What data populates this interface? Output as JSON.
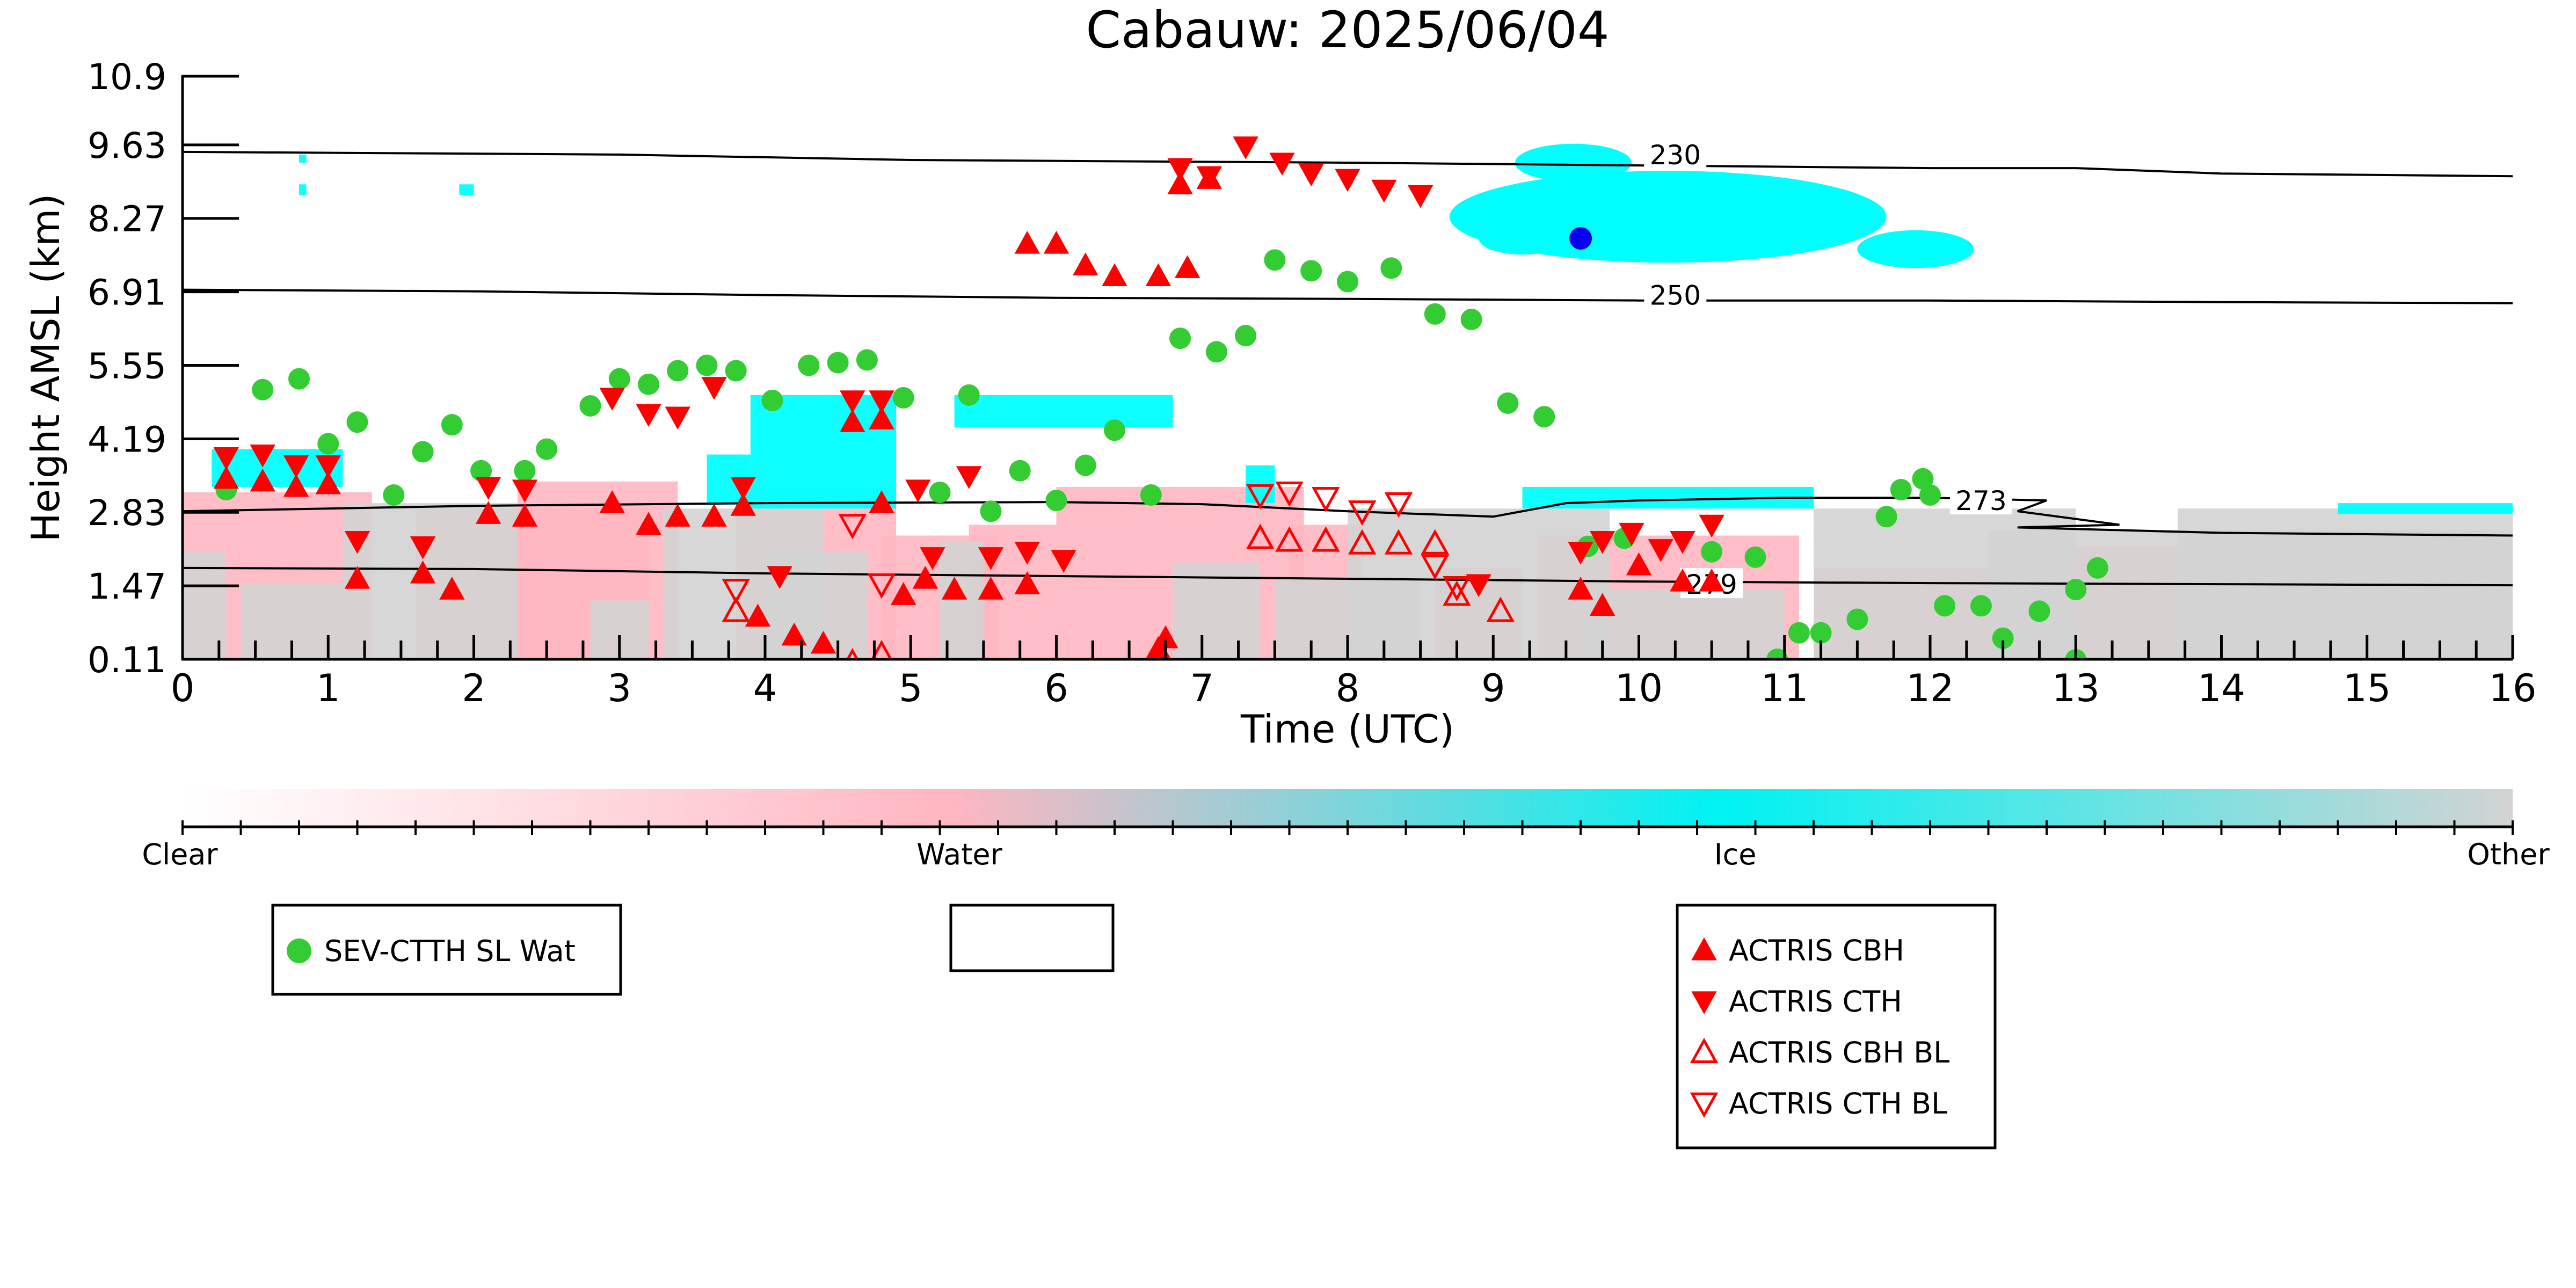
{
  "chart_data": {
    "type": "scatter",
    "title": "Cabauw: 2025/06/04",
    "xlabel": "Time (UTC)",
    "ylabel": "Height AMSL (km)",
    "xlim": [
      0,
      16
    ],
    "ylim": [
      0.11,
      10.9
    ],
    "x_ticks": [
      "0",
      "1",
      "2",
      "3",
      "4",
      "5",
      "6",
      "7",
      "8",
      "9",
      "10",
      "11",
      "12",
      "13",
      "14",
      "15",
      "16"
    ],
    "y_ticks": [
      "0.11",
      "1.47",
      "2.83",
      "4.19",
      "5.55",
      "6.91",
      "8.27",
      "9.63",
      "10.9"
    ],
    "y_tick_values": [
      0.11,
      1.47,
      2.83,
      4.19,
      5.55,
      6.91,
      8.27,
      9.63,
      10.9
    ],
    "colorbar": {
      "labels": [
        "Clear",
        "Water",
        "Ice",
        "Other"
      ],
      "colors": [
        "#ffffff",
        "#ffb6c1",
        "#00ffff",
        "#d3d3d3"
      ]
    },
    "colors": {
      "water": "#ffb6c1",
      "ice": "#00ffff",
      "other": "#d3d3d3",
      "sev": "#33cc33",
      "actris": "#ff0000",
      "highlight": "#0000ee"
    },
    "isotherms": [
      {
        "label": "230",
        "label_at": [
          10.25,
          9.45
        ],
        "points": [
          [
            0,
            9.5
          ],
          [
            3,
            9.45
          ],
          [
            5,
            9.35
          ],
          [
            8,
            9.3
          ],
          [
            10,
            9.25
          ],
          [
            12,
            9.2
          ],
          [
            13,
            9.2
          ],
          [
            14,
            9.1
          ],
          [
            16,
            9.05
          ]
        ]
      },
      {
        "label": "250",
        "label_at": [
          10.25,
          6.85
        ],
        "points": [
          [
            0,
            6.95
          ],
          [
            2,
            6.92
          ],
          [
            4,
            6.85
          ],
          [
            6,
            6.8
          ],
          [
            8,
            6.78
          ],
          [
            10,
            6.75
          ],
          [
            12,
            6.75
          ],
          [
            14,
            6.72
          ],
          [
            16,
            6.7
          ]
        ]
      },
      {
        "label": "273",
        "label_at": [
          12.35,
          3.05
        ],
        "points": [
          [
            0,
            2.85
          ],
          [
            2,
            2.95
          ],
          [
            4,
            3.0
          ],
          [
            6,
            3.02
          ],
          [
            7,
            2.98
          ],
          [
            8,
            2.85
          ],
          [
            9,
            2.75
          ],
          [
            9.5,
            3.0
          ],
          [
            10,
            3.05
          ],
          [
            11,
            3.1
          ],
          [
            12,
            3.1
          ],
          [
            12.8,
            3.05
          ],
          [
            12.6,
            2.85
          ],
          [
            13.3,
            2.6
          ],
          [
            12.6,
            2.55
          ],
          [
            14,
            2.45
          ],
          [
            16,
            2.4
          ]
        ]
      },
      {
        "label": "279",
        "label_at": [
          10.5,
          1.5
        ],
        "points": [
          [
            0,
            1.8
          ],
          [
            2,
            1.78
          ],
          [
            4,
            1.7
          ],
          [
            6,
            1.65
          ],
          [
            8,
            1.6
          ],
          [
            10,
            1.55
          ],
          [
            12,
            1.52
          ],
          [
            14,
            1.5
          ],
          [
            16,
            1.48
          ]
        ]
      }
    ],
    "cloud_regions": [
      {
        "type": "water",
        "rects": [
          [
            0,
            0.11,
            1.3,
            3.2
          ],
          [
            1.6,
            0.11,
            3.2,
            2.9
          ],
          [
            2.3,
            0.11,
            3.4,
            3.4
          ],
          [
            3.8,
            0.11,
            4.9,
            3.3
          ],
          [
            4.8,
            0.11,
            5.6,
            2.4
          ],
          [
            5.4,
            0.11,
            6.0,
            2.6
          ],
          [
            6.0,
            0.11,
            7.7,
            3.3
          ],
          [
            7.6,
            0.11,
            8.1,
            2.6
          ],
          [
            8.6,
            0.11,
            9.2,
            1.8
          ],
          [
            9.3,
            0.11,
            11.1,
            2.4
          ],
          [
            11.2,
            0.11,
            12.4,
            1.8
          ],
          [
            12.4,
            0.11,
            14.2,
            2.2
          ]
        ]
      },
      {
        "type": "other",
        "rects": [
          [
            0,
            0.11,
            0.3,
            2.1
          ],
          [
            0.4,
            0.11,
            1.1,
            1.5
          ],
          [
            1.1,
            0.11,
            2.3,
            3.0
          ],
          [
            2.8,
            0.11,
            3.2,
            1.2
          ],
          [
            3.3,
            0.11,
            4.4,
            2.9
          ],
          [
            4.0,
            0.11,
            4.7,
            2.1
          ],
          [
            5.2,
            0.11,
            5.5,
            2.3
          ],
          [
            6.8,
            0.11,
            7.4,
            1.9
          ],
          [
            7.5,
            0.11,
            8.5,
            1.6
          ],
          [
            8.0,
            0.11,
            9.8,
            2.9
          ],
          [
            9.6,
            0.11,
            11.0,
            1.4
          ],
          [
            11.2,
            0.11,
            13.0,
            2.9
          ],
          [
            12.4,
            0.11,
            16.0,
            2.5
          ],
          [
            13.7,
            0.11,
            16.0,
            2.9
          ]
        ]
      },
      {
        "type": "ice",
        "rects": [
          [
            0.2,
            3.3,
            1.1,
            4.0
          ],
          [
            3.6,
            3.0,
            3.9,
            3.9
          ],
          [
            3.9,
            2.9,
            4.9,
            5.0
          ],
          [
            5.3,
            4.4,
            6.8,
            5.0
          ],
          [
            7.3,
            3.0,
            7.5,
            3.7
          ],
          [
            9.2,
            2.9,
            11.2,
            3.3
          ],
          [
            14.8,
            2.8,
            16.0,
            3.0
          ],
          [
            0.8,
            8.7,
            0.85,
            8.9
          ],
          [
            1.9,
            8.7,
            2.0,
            8.9
          ],
          [
            0.8,
            9.3,
            0.85,
            9.45
          ]
        ]
      },
      {
        "type": "ice",
        "ellipses": [
          [
            10.2,
            8.3,
            1.5,
            0.85
          ],
          [
            9.55,
            9.3,
            0.4,
            0.35
          ],
          [
            11.9,
            7.7,
            0.4,
            0.35
          ],
          [
            9.2,
            7.9,
            0.3,
            0.3
          ]
        ]
      }
    ],
    "series": [
      {
        "name": "SEV-CTTH SL Wat",
        "marker": "circle",
        "points": [
          [
            0.3,
            3.25
          ],
          [
            0.55,
            5.1
          ],
          [
            0.8,
            5.3
          ],
          [
            1.0,
            4.1
          ],
          [
            1.2,
            4.5
          ],
          [
            1.45,
            3.15
          ],
          [
            1.65,
            3.95
          ],
          [
            1.85,
            4.45
          ],
          [
            2.05,
            3.6
          ],
          [
            2.35,
            3.6
          ],
          [
            2.5,
            4.0
          ],
          [
            2.8,
            4.8
          ],
          [
            3.0,
            5.3
          ],
          [
            3.2,
            5.2
          ],
          [
            3.4,
            5.45
          ],
          [
            3.6,
            5.55
          ],
          [
            3.8,
            5.45
          ],
          [
            4.05,
            4.9
          ],
          [
            4.3,
            5.55
          ],
          [
            4.5,
            5.6
          ],
          [
            4.7,
            5.65
          ],
          [
            4.95,
            4.95
          ],
          [
            5.2,
            3.2
          ],
          [
            5.4,
            5.0
          ],
          [
            5.55,
            2.85
          ],
          [
            5.75,
            3.6
          ],
          [
            6.0,
            3.05
          ],
          [
            6.2,
            3.7
          ],
          [
            6.4,
            4.35
          ],
          [
            6.65,
            3.15
          ],
          [
            6.85,
            6.05
          ],
          [
            7.1,
            5.8
          ],
          [
            7.3,
            6.1
          ],
          [
            7.5,
            7.5
          ],
          [
            7.75,
            7.3
          ],
          [
            8.0,
            7.1
          ],
          [
            8.3,
            7.35
          ],
          [
            8.6,
            6.5
          ],
          [
            8.85,
            6.4
          ],
          [
            9.1,
            4.85
          ],
          [
            9.35,
            4.6
          ],
          [
            9.65,
            2.2
          ],
          [
            9.9,
            2.35
          ],
          [
            10.5,
            2.1
          ],
          [
            10.8,
            2.0
          ],
          [
            10.95,
            0.11
          ],
          [
            11.1,
            0.6
          ],
          [
            11.25,
            0.6
          ],
          [
            11.5,
            0.85
          ],
          [
            11.7,
            2.75
          ],
          [
            11.8,
            3.25
          ],
          [
            11.95,
            3.45
          ],
          [
            12.0,
            3.15
          ],
          [
            12.1,
            1.1
          ],
          [
            12.35,
            1.1
          ],
          [
            12.5,
            0.5
          ],
          [
            12.75,
            1.0
          ],
          [
            13.0,
            1.4
          ],
          [
            13.15,
            1.8
          ],
          [
            13.0,
            0.1
          ]
        ]
      },
      {
        "name": "ACTRIS CBH",
        "marker": "triangle-up",
        "points": [
          [
            0.3,
            3.45
          ],
          [
            0.55,
            3.4
          ],
          [
            0.78,
            3.3
          ],
          [
            1.0,
            3.35
          ],
          [
            1.2,
            1.6
          ],
          [
            1.65,
            1.7
          ],
          [
            1.85,
            1.4
          ],
          [
            2.1,
            2.8
          ],
          [
            2.35,
            2.75
          ],
          [
            2.95,
            3.0
          ],
          [
            3.2,
            2.6
          ],
          [
            3.4,
            2.75
          ],
          [
            3.65,
            2.75
          ],
          [
            3.85,
            2.95
          ],
          [
            3.95,
            0.9
          ],
          [
            4.2,
            0.55
          ],
          [
            4.4,
            0.4
          ],
          [
            4.6,
            4.5
          ],
          [
            4.8,
            4.55
          ],
          [
            4.8,
            3.0
          ],
          [
            4.95,
            1.3
          ],
          [
            5.1,
            1.6
          ],
          [
            5.3,
            1.4
          ],
          [
            5.55,
            1.4
          ],
          [
            5.8,
            1.5
          ],
          [
            5.8,
            7.8
          ],
          [
            6.0,
            7.8
          ],
          [
            6.2,
            7.4
          ],
          [
            6.4,
            7.2
          ],
          [
            6.7,
            7.2
          ],
          [
            6.9,
            7.35
          ],
          [
            6.85,
            8.9
          ],
          [
            7.05,
            9.0
          ],
          [
            6.75,
            0.5
          ],
          [
            6.7,
            0.3
          ],
          [
            9.6,
            1.4
          ],
          [
            9.75,
            1.1
          ],
          [
            10.0,
            1.85
          ],
          [
            10.3,
            1.55
          ],
          [
            10.5,
            1.55
          ]
        ]
      },
      {
        "name": "ACTRIS CTH",
        "marker": "triangle-down",
        "points": [
          [
            0.3,
            3.85
          ],
          [
            0.55,
            3.9
          ],
          [
            0.78,
            3.7
          ],
          [
            1.0,
            3.7
          ],
          [
            1.2,
            2.3
          ],
          [
            1.65,
            2.2
          ],
          [
            2.1,
            3.3
          ],
          [
            2.35,
            3.25
          ],
          [
            2.95,
            4.95
          ],
          [
            3.2,
            4.65
          ],
          [
            3.4,
            4.6
          ],
          [
            3.65,
            5.15
          ],
          [
            3.85,
            3.3
          ],
          [
            4.1,
            1.65
          ],
          [
            4.6,
            4.9
          ],
          [
            4.8,
            4.9
          ],
          [
            5.05,
            3.25
          ],
          [
            5.15,
            2.0
          ],
          [
            5.4,
            3.5
          ],
          [
            5.55,
            2.0
          ],
          [
            5.8,
            2.1
          ],
          [
            6.05,
            1.95
          ],
          [
            6.85,
            9.2
          ],
          [
            7.05,
            9.05
          ],
          [
            7.3,
            9.6
          ],
          [
            7.55,
            9.3
          ],
          [
            7.75,
            9.1
          ],
          [
            8.0,
            9.0
          ],
          [
            8.25,
            8.8
          ],
          [
            8.5,
            8.7
          ],
          [
            8.9,
            1.5
          ],
          [
            9.6,
            2.1
          ],
          [
            9.75,
            2.3
          ],
          [
            9.95,
            2.45
          ],
          [
            10.15,
            2.15
          ],
          [
            10.3,
            2.3
          ],
          [
            10.5,
            2.6
          ]
        ]
      },
      {
        "name": "ACTRIS CBH BL",
        "marker": "triangle-up-open",
        "points": [
          [
            3.8,
            1.0
          ],
          [
            4.6,
            0.05
          ],
          [
            4.8,
            0.2
          ],
          [
            7.4,
            2.35
          ],
          [
            7.6,
            2.3
          ],
          [
            7.85,
            2.3
          ],
          [
            8.1,
            2.25
          ],
          [
            8.35,
            2.25
          ],
          [
            8.6,
            2.25
          ],
          [
            8.75,
            1.3
          ],
          [
            9.05,
            1.0
          ]
        ]
      },
      {
        "name": "ACTRIS CTH BL",
        "marker": "triangle-down-open",
        "points": [
          [
            3.8,
            1.4
          ],
          [
            4.6,
            2.6
          ],
          [
            4.8,
            1.5
          ],
          [
            7.4,
            3.15
          ],
          [
            7.6,
            3.2
          ],
          [
            7.85,
            3.1
          ],
          [
            8.1,
            2.85
          ],
          [
            8.35,
            3.0
          ],
          [
            8.6,
            1.85
          ],
          [
            8.75,
            1.45
          ]
        ]
      }
    ],
    "highlight_point": [
      9.6,
      7.9
    ],
    "legend": [
      {
        "items": [
          {
            "label": "SEV-CTTH SL Wat",
            "marker": "circle"
          }
        ]
      },
      {
        "items": []
      },
      {
        "items": [
          {
            "label": "ACTRIS CBH",
            "marker": "triangle-up"
          },
          {
            "label": "ACTRIS CTH",
            "marker": "triangle-down"
          },
          {
            "label": "ACTRIS CBH BL",
            "marker": "triangle-up-open"
          },
          {
            "label": "ACTRIS CTH BL",
            "marker": "triangle-down-open"
          }
        ]
      }
    ]
  }
}
